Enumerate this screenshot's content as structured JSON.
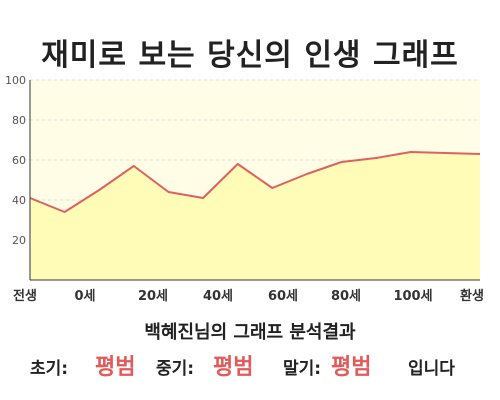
{
  "title": "재미로 보는 당신의 인생 그래프",
  "subtitle": "백혜진님의 그래프 분석결과",
  "summary": {
    "early_label": "초기:",
    "early_value": "평범",
    "middle_label": "중기:",
    "middle_value": "평범",
    "late_label": "말기:",
    "late_value": "평범",
    "ending": "입니다"
  },
  "colors": {
    "line": "#e06060",
    "fill": "#fffcb8",
    "plot_bg": "#fffde6",
    "grade_text": "#e35a5a"
  },
  "chart_data": {
    "type": "area",
    "title": "",
    "xlabel": "",
    "ylabel": "",
    "ylim": [
      0,
      100
    ],
    "yticks": [
      100,
      80,
      60,
      40,
      20
    ],
    "x_tick_labels": [
      "전생",
      "0세",
      "20세",
      "40세",
      "60세",
      "80세",
      "100세",
      "환생"
    ],
    "grid": true,
    "legend": "none",
    "series": [
      {
        "points": [
          {
            "x": "전생",
            "y": 41
          },
          {
            "x": "0세",
            "y": 34
          },
          {
            "x": "10세",
            "y": 45
          },
          {
            "x": "20세",
            "y": 57
          },
          {
            "x": "30세",
            "y": 44
          },
          {
            "x": "40세",
            "y": 41
          },
          {
            "x": "50세",
            "y": 58
          },
          {
            "x": "60세",
            "y": 46
          },
          {
            "x": "70세",
            "y": 53
          },
          {
            "x": "80세",
            "y": 59
          },
          {
            "x": "90세",
            "y": 61
          },
          {
            "x": "100세",
            "y": 64
          },
          {
            "x": "110세",
            "y": 63.5
          },
          {
            "x": "환생",
            "y": 63
          }
        ]
      }
    ]
  }
}
